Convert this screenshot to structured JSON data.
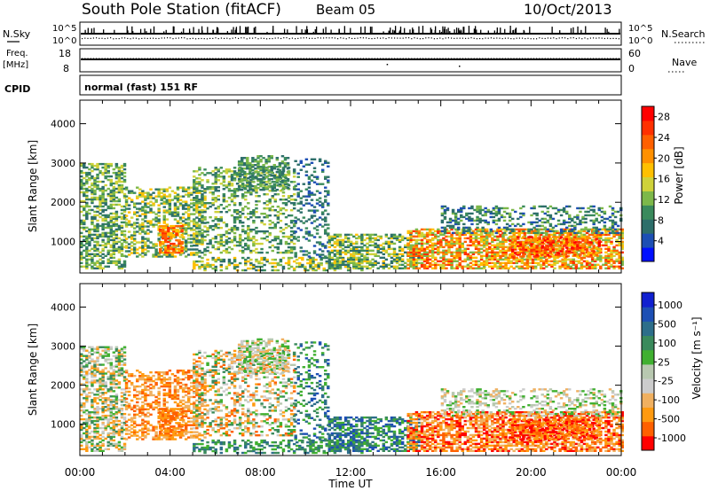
{
  "header": {
    "station": "South Pole Station (fitACF)",
    "beam": "Beam 05",
    "date": "10/Oct/2013"
  },
  "strips": {
    "nsky_label": "N.Sky",
    "nsky_tick_top": "10^5",
    "nsky_tick_bottom": "10^0",
    "nsearch_label": "N.Search",
    "nsearch_tick_top": "10^5",
    "nsearch_tick_bottom": "10^0",
    "freq_label_1": "Freq.",
    "freq_label_2": "[MHz]",
    "freq_tick_top": "18",
    "freq_tick_bottom": "8",
    "nave_label": "Nave",
    "nave_tick_top": "60",
    "nave_tick_bottom": "0",
    "cpid_label": "CPID",
    "cpid_value": "normal (fast) 151 RF"
  },
  "colors": {
    "power": [
      "#0010ff",
      "#1d4fb4",
      "#2d6e6a",
      "#3a8a5c",
      "#7db84a",
      "#cfd23a",
      "#ffc000",
      "#ff9000",
      "#ff6000",
      "#ff3000",
      "#ff0000"
    ],
    "velocity": [
      "#ff0000",
      "#ff6000",
      "#ff9a10",
      "#f0b060",
      "#cccccc",
      "#b8c8b0",
      "#40b030",
      "#3a8a5c",
      "#2d6e8a",
      "#1d4fb4",
      "#1020d0"
    ]
  },
  "chart_data": [
    {
      "type": "heatmap",
      "name": "power",
      "xlabel": "",
      "ylabel": "Slant Range [km]",
      "x_ticks": [
        "00:00",
        "04:00",
        "08:00",
        "12:00",
        "16:00",
        "20:00",
        "00:00"
      ],
      "x_range_hours": [
        0,
        24
      ],
      "y_ticks": [
        1000,
        2000,
        3000,
        4000
      ],
      "ylim": [
        200,
        4600
      ],
      "colorbar_label": "Power [dB]",
      "colorbar_ticks": [
        4,
        8,
        12,
        16,
        20,
        24,
        28
      ],
      "colorbar_range": [
        0,
        30
      ]
    },
    {
      "type": "heatmap",
      "name": "velocity",
      "xlabel": "Time UT",
      "ylabel": "Slant Range [km]",
      "x_ticks": [
        "00:00",
        "04:00",
        "08:00",
        "12:00",
        "16:00",
        "20:00",
        "00:00"
      ],
      "x_range_hours": [
        0,
        24
      ],
      "y_ticks": [
        1000,
        2000,
        3000,
        4000
      ],
      "ylim": [
        200,
        4600
      ],
      "colorbar_label": "Velocity [m s⁻¹]",
      "colorbar_ticks": [
        "1000",
        "500",
        "100",
        "25",
        "-25",
        "-100",
        "-500",
        "-1000"
      ]
    }
  ]
}
